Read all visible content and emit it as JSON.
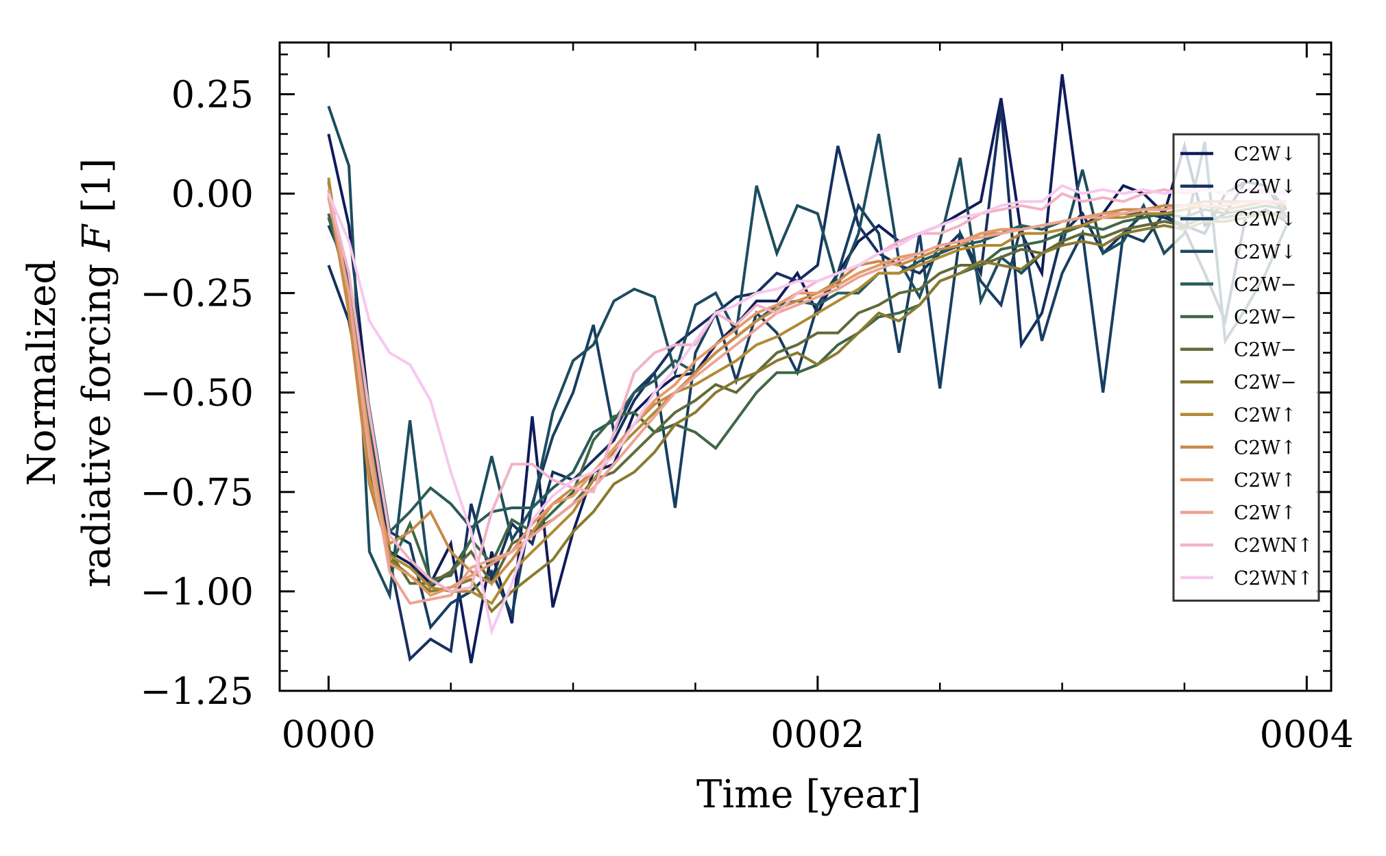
{
  "chart_data": {
    "type": "line",
    "xlabel": "Time [year]",
    "ylabel_line1": "Normalized",
    "ylabel_line2": "radiative forcing ",
    "ylabel_symbol": "F",
    "ylabel_unit": " [1]",
    "xlim": [
      -0.2,
      4.1
    ],
    "ylim": [
      -1.25,
      0.38
    ],
    "xticks": [
      {
        "value": 0,
        "label": "0000"
      },
      {
        "value": 2,
        "label": "0002"
      },
      {
        "value": 4,
        "label": "0004"
      }
    ],
    "yticks": [
      {
        "value": 0.25,
        "label": "0.25"
      },
      {
        "value": 0.0,
        "label": "0.00"
      },
      {
        "value": -0.25,
        "label": "−0.25"
      },
      {
        "value": -0.5,
        "label": "−0.50"
      },
      {
        "value": -0.75,
        "label": "−0.75"
      },
      {
        "value": -1.0,
        "label": "−1.00"
      },
      {
        "value": -1.25,
        "label": "−1.25"
      }
    ],
    "grid": false,
    "legend_position": "right",
    "x": [
      0.0,
      0.083,
      0.167,
      0.25,
      0.333,
      0.417,
      0.5,
      0.583,
      0.667,
      0.75,
      0.833,
      0.917,
      1.0,
      1.083,
      1.167,
      1.25,
      1.333,
      1.417,
      1.5,
      1.583,
      1.667,
      1.75,
      1.833,
      1.917,
      2.0,
      2.083,
      2.167,
      2.25,
      2.333,
      2.417,
      2.5,
      2.583,
      2.667,
      2.75,
      2.833,
      2.917,
      3.0,
      3.083,
      3.167,
      3.25,
      3.333,
      3.417,
      3.5,
      3.583,
      3.667,
      3.75,
      3.833,
      3.917
    ],
    "series": [
      {
        "name": "C2W↓",
        "color": "#0f1c5a",
        "values": [
          0.15,
          -0.08,
          -0.55,
          -0.9,
          -0.93,
          -0.98,
          -0.88,
          -1.18,
          -0.9,
          -1.08,
          -0.56,
          -1.04,
          -0.85,
          -0.7,
          -0.68,
          -0.55,
          -0.5,
          -0.46,
          -0.45,
          -0.38,
          -0.33,
          -0.27,
          -0.27,
          -0.2,
          -0.3,
          -0.2,
          -0.12,
          -0.08,
          -0.12,
          -0.1,
          -0.08,
          -0.05,
          -0.02,
          0.24,
          -0.1,
          -0.2,
          0.3,
          -0.08,
          -0.05,
          0.02,
          0.0,
          -0.05,
          0.12,
          -0.08,
          -0.05,
          0.03,
          0.02,
          -0.06
        ]
      },
      {
        "name": "C2W↓",
        "color": "#16305f",
        "values": [
          -0.18,
          -0.32,
          -0.6,
          -0.92,
          -1.17,
          -1.12,
          -1.15,
          -0.78,
          -0.97,
          -0.83,
          -0.88,
          -0.7,
          -0.72,
          -0.67,
          -0.62,
          -0.52,
          -0.45,
          -0.38,
          -0.34,
          -0.3,
          -0.26,
          -0.25,
          -0.2,
          -0.22,
          -0.18,
          0.12,
          -0.08,
          -0.15,
          -0.18,
          -0.2,
          -0.15,
          -0.1,
          -0.2,
          0.22,
          -0.38,
          -0.3,
          -0.1,
          -0.05,
          -0.15,
          -0.1,
          -0.05,
          -0.06,
          -0.08,
          -0.1,
          0.0,
          0.03,
          0.02,
          -0.04
        ]
      },
      {
        "name": "C2W↓",
        "color": "#173e62",
        "values": [
          -0.08,
          -0.2,
          -0.62,
          -0.85,
          -0.88,
          -1.09,
          -1.03,
          -1.0,
          -0.95,
          -1.06,
          -0.78,
          -0.61,
          -0.5,
          -0.33,
          -0.6,
          -0.5,
          -0.45,
          -0.79,
          -0.4,
          -0.3,
          -0.47,
          -0.3,
          -0.35,
          -0.45,
          -0.28,
          -0.2,
          -0.03,
          -0.1,
          -0.4,
          -0.1,
          -0.49,
          -0.1,
          -0.22,
          -0.28,
          -0.08,
          -0.37,
          -0.2,
          -0.1,
          -0.5,
          -0.1,
          -0.12,
          -0.05,
          -0.09,
          -0.2,
          -0.32,
          -0.06,
          -0.04,
          -0.07
        ]
      },
      {
        "name": "C2W↓",
        "color": "#1d4c5e",
        "values": [
          0.22,
          0.07,
          -0.9,
          -1.01,
          -0.57,
          -0.99,
          -0.95,
          -0.87,
          -0.66,
          -0.87,
          -0.79,
          -0.55,
          -0.42,
          -0.38,
          -0.27,
          -0.24,
          -0.26,
          -0.45,
          -0.28,
          -0.25,
          -0.35,
          0.02,
          -0.15,
          -0.03,
          -0.05,
          -0.23,
          -0.1,
          0.15,
          -0.17,
          -0.26,
          -0.12,
          0.09,
          -0.27,
          -0.16,
          -0.2,
          -0.15,
          -0.13,
          0.06,
          -0.15,
          -0.12,
          -0.03,
          -0.15,
          -0.1,
          0.13,
          -0.37,
          -0.29,
          -0.2,
          -0.08
        ]
      },
      {
        "name": "C2W−",
        "color": "#2a5a5a",
        "values": [
          -0.06,
          -0.22,
          -0.54,
          -0.85,
          -0.8,
          -0.74,
          -0.78,
          -0.84,
          -0.8,
          -0.79,
          -0.79,
          -0.74,
          -0.7,
          -0.6,
          -0.57,
          -0.5,
          -0.47,
          -0.42,
          -0.45,
          -0.4,
          -0.36,
          -0.32,
          -0.28,
          -0.27,
          -0.28,
          -0.25,
          -0.25,
          -0.2,
          -0.2,
          -0.17,
          -0.15,
          -0.13,
          -0.12,
          -0.1,
          -0.08,
          -0.09,
          -0.07,
          -0.06,
          -0.06,
          -0.05,
          -0.05,
          -0.05,
          -0.04,
          -0.03,
          -0.04,
          -0.03,
          -0.02,
          -0.03
        ]
      },
      {
        "name": "C2W−",
        "color": "#3f6747",
        "values": [
          -0.05,
          -0.25,
          -0.6,
          -0.94,
          -0.83,
          -0.97,
          -0.96,
          -0.87,
          -0.93,
          -0.82,
          -0.85,
          -0.8,
          -0.75,
          -0.62,
          -0.56,
          -0.55,
          -0.6,
          -0.58,
          -0.6,
          -0.64,
          -0.57,
          -0.5,
          -0.45,
          -0.45,
          -0.43,
          -0.38,
          -0.35,
          -0.31,
          -0.3,
          -0.28,
          -0.22,
          -0.2,
          -0.18,
          -0.14,
          -0.13,
          -0.12,
          -0.1,
          -0.08,
          -0.09,
          -0.07,
          -0.06,
          -0.05,
          -0.06,
          -0.04,
          -0.05,
          -0.04,
          -0.03,
          -0.04
        ]
      },
      {
        "name": "C2W−",
        "color": "#606a38",
        "values": [
          0.0,
          -0.3,
          -0.65,
          -0.9,
          -0.98,
          -0.98,
          -0.95,
          -0.9,
          -0.98,
          -0.88,
          -0.85,
          -0.82,
          -0.78,
          -0.72,
          -0.7,
          -0.65,
          -0.6,
          -0.55,
          -0.52,
          -0.48,
          -0.5,
          -0.45,
          -0.4,
          -0.38,
          -0.35,
          -0.35,
          -0.3,
          -0.28,
          -0.25,
          -0.24,
          -0.2,
          -0.18,
          -0.18,
          -0.16,
          -0.14,
          -0.15,
          -0.12,
          -0.1,
          -0.11,
          -0.09,
          -0.08,
          -0.07,
          -0.08,
          -0.06,
          -0.06,
          -0.05,
          -0.05,
          -0.05
        ]
      },
      {
        "name": "C2W−",
        "color": "#8a7a30",
        "values": [
          0.03,
          -0.28,
          -0.7,
          -0.92,
          -0.96,
          -1.0,
          -0.99,
          -0.97,
          -1.05,
          -1.0,
          -0.96,
          -0.92,
          -0.85,
          -0.8,
          -0.73,
          -0.7,
          -0.65,
          -0.58,
          -0.55,
          -0.5,
          -0.47,
          -0.45,
          -0.42,
          -0.4,
          -0.43,
          -0.4,
          -0.35,
          -0.3,
          -0.32,
          -0.28,
          -0.22,
          -0.2,
          -0.17,
          -0.18,
          -0.19,
          -0.15,
          -0.13,
          -0.12,
          -0.13,
          -0.1,
          -0.09,
          -0.08,
          -0.09,
          -0.07,
          -0.07,
          -0.06,
          -0.05,
          -0.06
        ]
      },
      {
        "name": "C2W↑",
        "color": "#b08a35",
        "values": [
          0.04,
          -0.3,
          -0.73,
          -0.91,
          -0.94,
          -0.99,
          -1.0,
          -1.0,
          -1.03,
          -0.95,
          -0.9,
          -0.85,
          -0.8,
          -0.72,
          -0.65,
          -0.6,
          -0.55,
          -0.5,
          -0.48,
          -0.45,
          -0.42,
          -0.38,
          -0.36,
          -0.33,
          -0.3,
          -0.27,
          -0.24,
          -0.2,
          -0.2,
          -0.18,
          -0.16,
          -0.14,
          -0.13,
          -0.13,
          -0.1,
          -0.1,
          -0.09,
          -0.08,
          -0.06,
          -0.06,
          -0.05,
          -0.05,
          -0.04,
          -0.03,
          -0.04,
          -0.03,
          -0.02,
          -0.03
        ]
      },
      {
        "name": "C2W↑",
        "color": "#c98b48",
        "values": [
          0.0,
          -0.3,
          -0.72,
          -0.88,
          -0.85,
          -0.8,
          -0.9,
          -0.95,
          -0.98,
          -0.92,
          -0.85,
          -0.78,
          -0.74,
          -0.7,
          -0.64,
          -0.58,
          -0.53,
          -0.5,
          -0.45,
          -0.4,
          -0.36,
          -0.32,
          -0.29,
          -0.27,
          -0.25,
          -0.22,
          -0.18,
          -0.17,
          -0.18,
          -0.16,
          -0.14,
          -0.13,
          -0.1,
          -0.1,
          -0.09,
          -0.08,
          -0.07,
          -0.06,
          -0.05,
          -0.04,
          -0.04,
          -0.03,
          -0.03,
          -0.02,
          -0.02,
          -0.02,
          -0.02,
          -0.02
        ]
      },
      {
        "name": "C2W↑",
        "color": "#e49a68",
        "values": [
          -0.01,
          -0.25,
          -0.62,
          -0.93,
          -0.96,
          -1.01,
          -0.99,
          -0.96,
          -0.93,
          -0.9,
          -0.83,
          -0.78,
          -0.76,
          -0.7,
          -0.64,
          -0.58,
          -0.52,
          -0.48,
          -0.42,
          -0.38,
          -0.34,
          -0.3,
          -0.28,
          -0.25,
          -0.25,
          -0.23,
          -0.2,
          -0.18,
          -0.16,
          -0.15,
          -0.13,
          -0.12,
          -0.1,
          -0.09,
          -0.09,
          -0.08,
          -0.07,
          -0.06,
          -0.05,
          -0.05,
          -0.04,
          -0.04,
          -0.03,
          -0.03,
          -0.03,
          -0.02,
          -0.02,
          -0.02
        ]
      },
      {
        "name": "C2W↑",
        "color": "#eca494",
        "values": [
          0.01,
          -0.25,
          -0.66,
          -0.95,
          -1.03,
          -1.02,
          -1.01,
          -0.94,
          -0.92,
          -0.9,
          -0.86,
          -0.82,
          -0.78,
          -0.74,
          -0.68,
          -0.62,
          -0.56,
          -0.5,
          -0.46,
          -0.42,
          -0.38,
          -0.34,
          -0.3,
          -0.28,
          -0.26,
          -0.24,
          -0.21,
          -0.19,
          -0.17,
          -0.15,
          -0.13,
          -0.12,
          -0.11,
          -0.1,
          -0.09,
          -0.08,
          -0.07,
          -0.06,
          -0.06,
          -0.05,
          -0.04,
          -0.04,
          -0.03,
          -0.03,
          -0.03,
          -0.02,
          -0.02,
          -0.02
        ]
      },
      {
        "name": "C2WN↑",
        "color": "#f2b3c6",
        "values": [
          0.0,
          -0.2,
          -0.55,
          -0.86,
          -0.92,
          -0.97,
          -1.0,
          -0.99,
          -0.8,
          -0.68,
          -0.68,
          -0.72,
          -0.74,
          -0.75,
          -0.6,
          -0.45,
          -0.4,
          -0.38,
          -0.38,
          -0.3,
          -0.33,
          -0.28,
          -0.3,
          -0.25,
          -0.22,
          -0.2,
          -0.18,
          -0.15,
          -0.12,
          -0.1,
          -0.1,
          -0.08,
          -0.05,
          -0.04,
          -0.03,
          -0.04,
          0.0,
          -0.02,
          -0.01,
          -0.02,
          0.0,
          0.01,
          0.0,
          0.01,
          0.0,
          0.01,
          0.01,
          0.0
        ]
      },
      {
        "name": "C2WN↑",
        "color": "#f7c8ef",
        "values": [
          0.0,
          -0.12,
          -0.32,
          -0.4,
          -0.43,
          -0.52,
          -0.7,
          -0.85,
          -1.1,
          -0.98,
          -0.82,
          -0.76,
          -0.72,
          -0.7,
          -0.66,
          -0.58,
          -0.5,
          -0.44,
          -0.37,
          -0.3,
          -0.28,
          -0.25,
          -0.24,
          -0.22,
          -0.22,
          -0.2,
          -0.18,
          -0.15,
          -0.13,
          -0.1,
          -0.08,
          -0.06,
          -0.05,
          -0.03,
          -0.02,
          -0.02,
          0.02,
          0.0,
          0.01,
          0.0,
          0.01,
          0.0,
          0.01,
          0.01,
          0.0,
          0.01,
          0.0,
          0.0
        ]
      }
    ]
  }
}
